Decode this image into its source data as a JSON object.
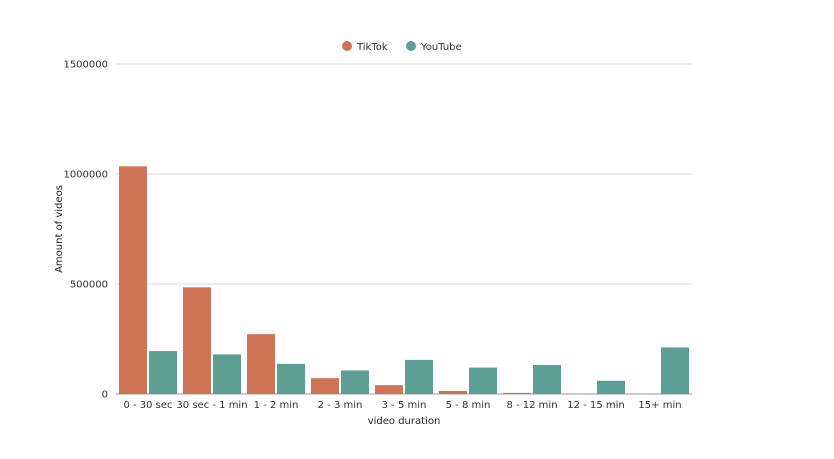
{
  "chart_data": {
    "type": "bar",
    "categories": [
      "0 - 30 sec",
      "30 sec - 1 min",
      "1 - 2 min",
      "2 - 3 min",
      "3 - 5 min",
      "5 - 8 min",
      "8 - 12 min",
      "12 - 15 min",
      "15+ min"
    ],
    "series": [
      {
        "name": "TikTok",
        "color": "#cf7555",
        "values": [
          1035000,
          485000,
          272000,
          72000,
          40000,
          14000,
          5000,
          1500,
          1000
        ]
      },
      {
        "name": "YouTube",
        "color": "#5a9e94",
        "values": [
          195000,
          180000,
          137000,
          107000,
          155000,
          120000,
          132000,
          60000,
          212000
        ]
      }
    ],
    "title": "",
    "xlabel": "video duration",
    "ylabel": "Amount of videos",
    "ylim": [
      0,
      1500000
    ],
    "yticks": [
      0,
      500000,
      1000000,
      1500000
    ],
    "grid": true,
    "legend_position": "top-center"
  }
}
